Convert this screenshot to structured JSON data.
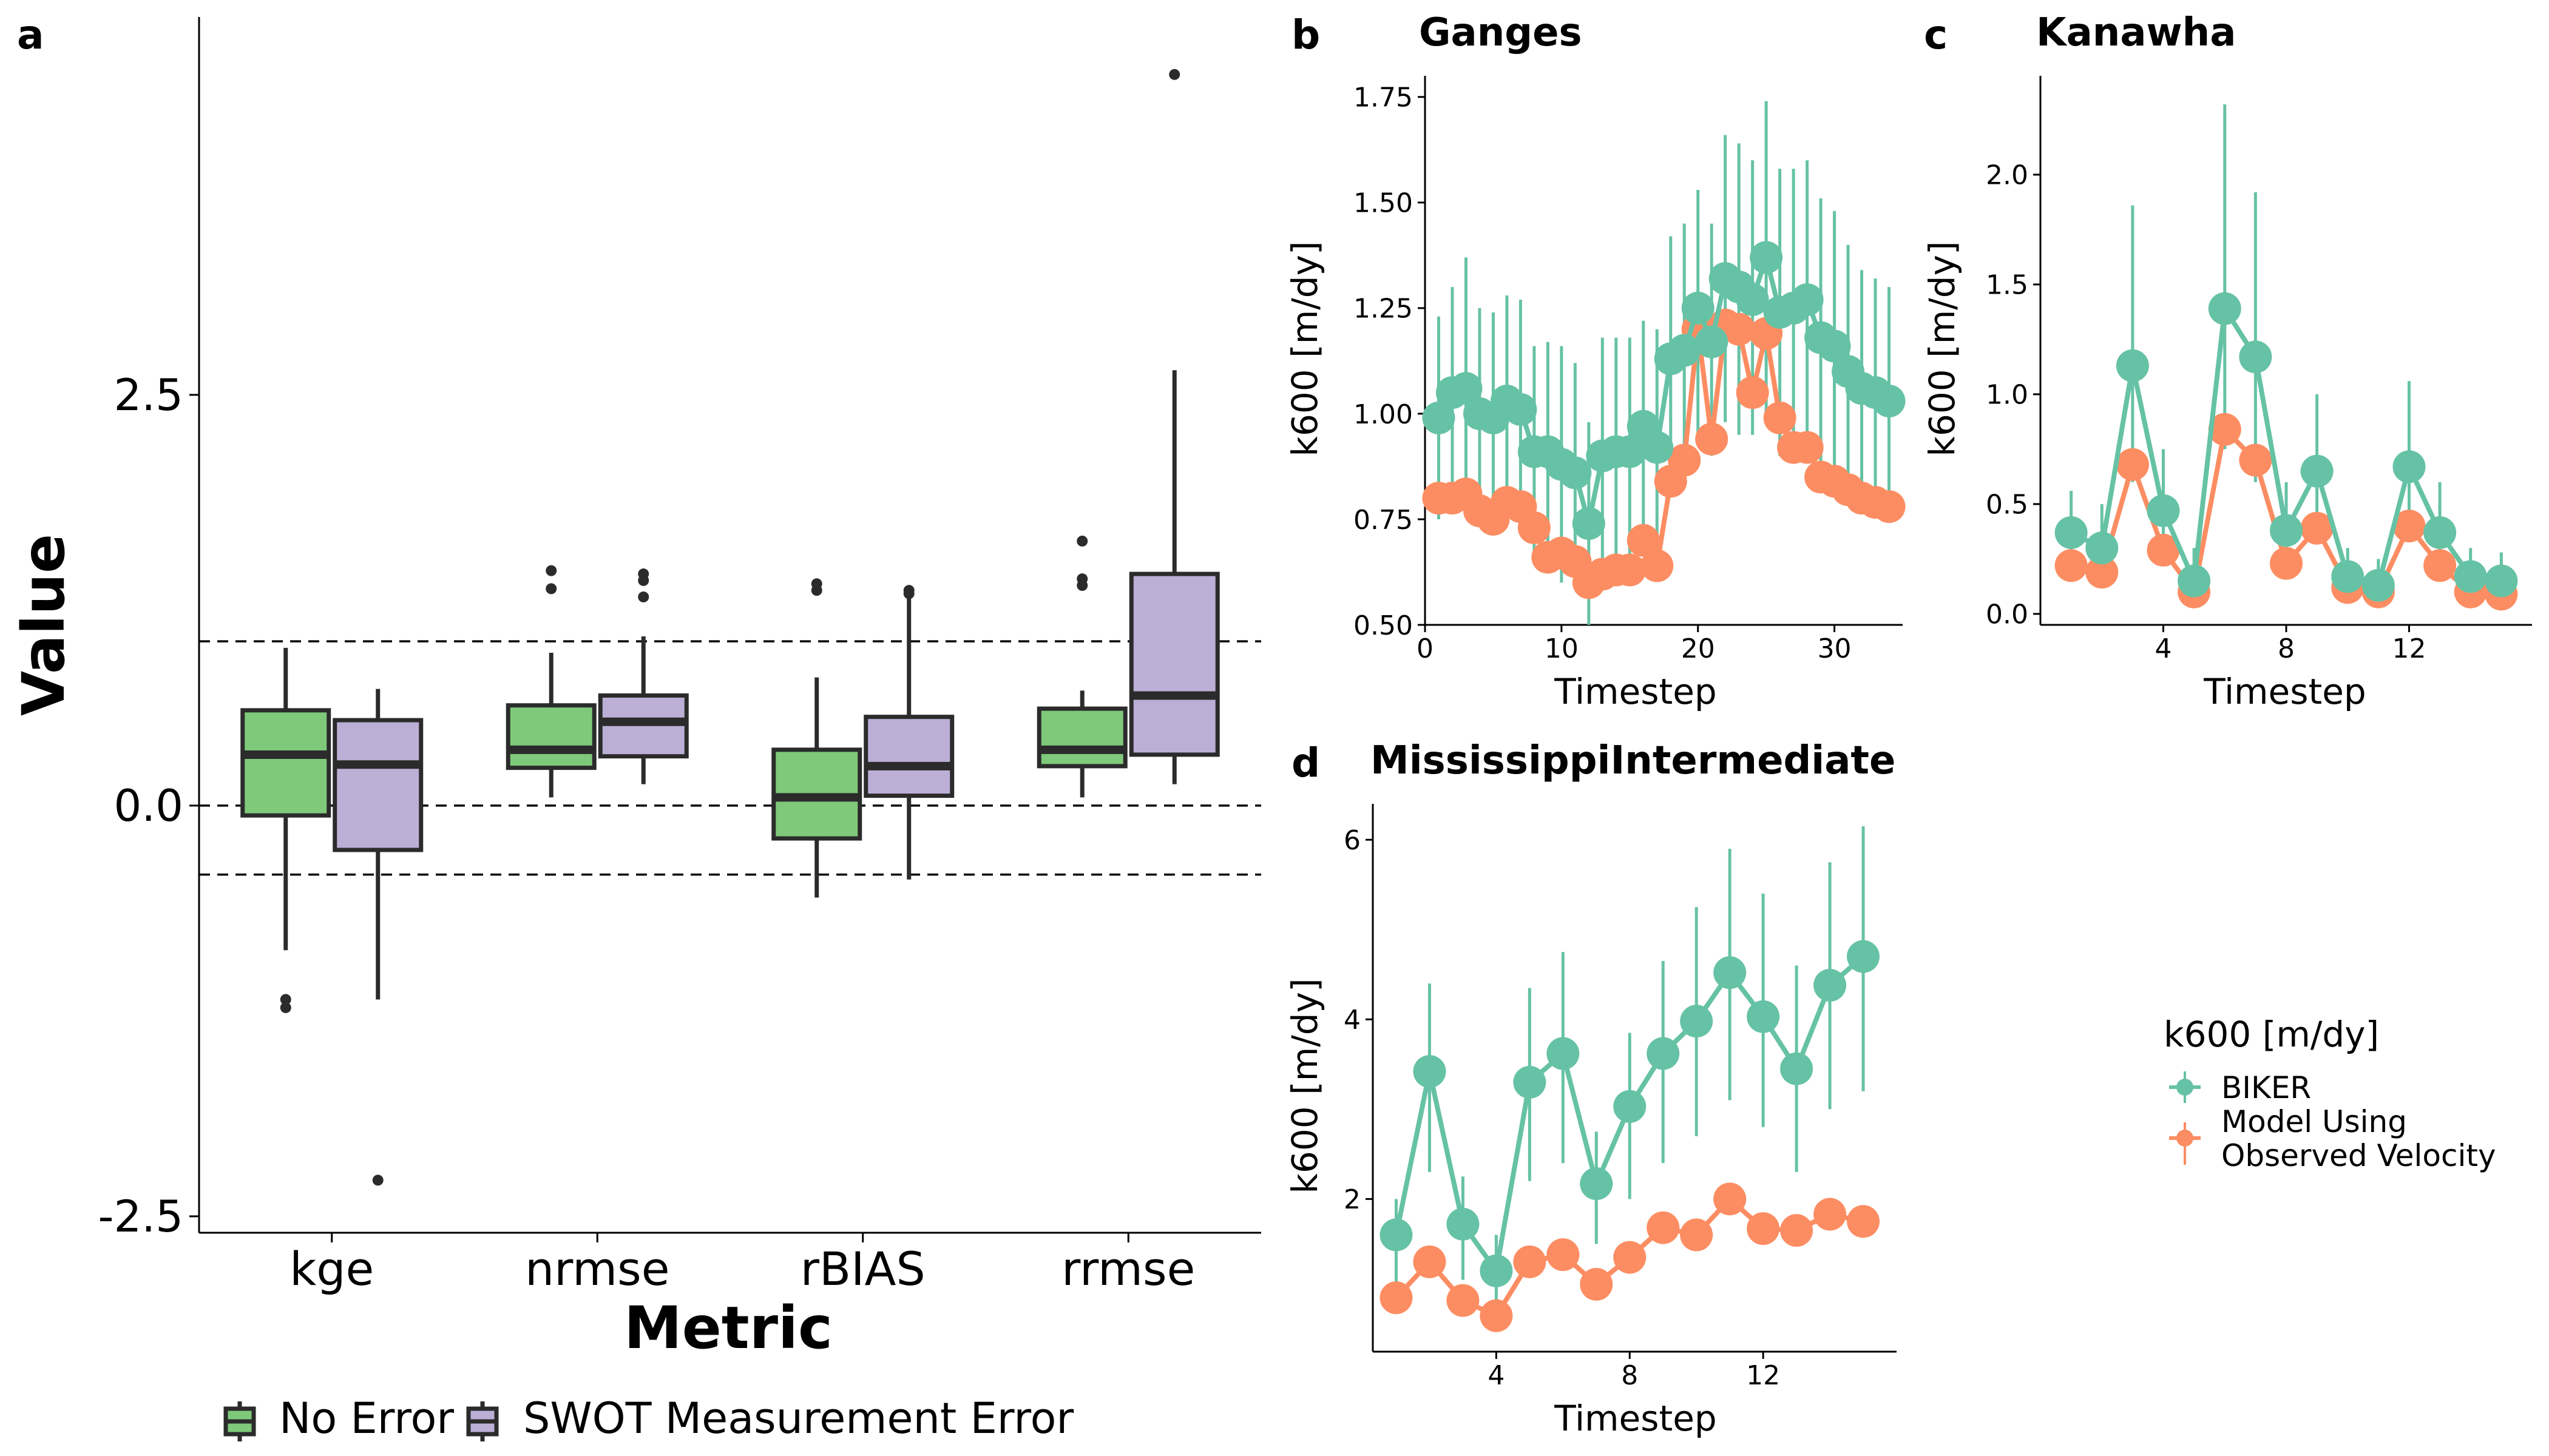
{
  "colors": {
    "no_error": "#7ec97a",
    "swot_error": "#bcafd6",
    "biker": "#66c2a5",
    "model": "#fc8d62"
  },
  "chart_data": [
    {
      "panel": "a",
      "type": "box",
      "title": "",
      "xlabel": "Metric",
      "ylabel": "Value",
      "ylim": [
        -2.6,
        4.8
      ],
      "yticks": [
        -2.5,
        0.0,
        2.5
      ],
      "ytick_labels": [
        "-2.5",
        "0.0",
        "2.5"
      ],
      "categories": [
        "kge",
        "nrmse",
        "rBIAS",
        "rrmse"
      ],
      "reference_lines": [
        1.0,
        0.0,
        -0.42
      ],
      "legend": {
        "placement": "bottom",
        "entries": [
          "No Error",
          "SWOT Measurement Error"
        ]
      },
      "series": [
        {
          "name": "No Error",
          "boxes": [
            {
              "category": "kge",
              "lo": -0.88,
              "q1": -0.06,
              "median": 0.31,
              "q3": 0.58,
              "hi": 0.96,
              "outliers": [
                -1.18,
                -1.23
              ]
            },
            {
              "category": "nrmse",
              "lo": 0.05,
              "q1": 0.23,
              "median": 0.34,
              "q3": 0.61,
              "hi": 0.93,
              "outliers": [
                1.43,
                1.32
              ]
            },
            {
              "category": "rBIAS",
              "lo": -0.56,
              "q1": -0.2,
              "median": 0.05,
              "q3": 0.34,
              "hi": 0.78,
              "outliers": [
                1.35,
                1.31
              ]
            },
            {
              "category": "rrmse",
              "lo": 0.05,
              "q1": 0.24,
              "median": 0.34,
              "q3": 0.59,
              "hi": 0.7,
              "outliers": [
                1.61,
                1.38,
                1.34
              ]
            }
          ]
        },
        {
          "name": "SWOT Measurement Error",
          "boxes": [
            {
              "category": "kge",
              "lo": -1.18,
              "q1": -0.27,
              "median": 0.25,
              "q3": 0.52,
              "hi": 0.71,
              "outliers": [
                -2.28
              ]
            },
            {
              "category": "nrmse",
              "lo": 0.13,
              "q1": 0.3,
              "median": 0.51,
              "q3": 0.67,
              "hi": 1.03,
              "outliers": [
                1.41,
                1.37,
                1.27
              ]
            },
            {
              "category": "rBIAS",
              "lo": -0.45,
              "q1": 0.06,
              "median": 0.24,
              "q3": 0.54,
              "hi": 1.29,
              "outliers": [
                1.31,
                1.29
              ]
            },
            {
              "category": "rrmse",
              "lo": 0.13,
              "q1": 0.31,
              "median": 0.67,
              "q3": 1.41,
              "hi": 2.65,
              "outliers": [
                4.45
              ]
            }
          ]
        }
      ]
    },
    {
      "panel": "b",
      "type": "line",
      "title": "Ganges",
      "xlabel": "Timestep",
      "ylabel": "k600 [m/dy]",
      "xlim": [
        0,
        35
      ],
      "ylim": [
        0.5,
        1.8
      ],
      "xticks": [
        0,
        10,
        20,
        30
      ],
      "yticks": [
        0.5,
        0.75,
        1.0,
        1.25,
        1.5,
        1.75
      ],
      "ytick_labels": [
        "0.50",
        "0.75",
        "1.00",
        "1.25",
        "1.50",
        "1.75"
      ],
      "x": [
        1,
        2,
        3,
        4,
        5,
        6,
        7,
        8,
        9,
        10,
        11,
        12,
        13,
        14,
        15,
        16,
        17,
        18,
        19,
        20,
        21,
        22,
        23,
        24,
        25,
        26,
        27,
        28,
        29,
        30,
        31,
        32,
        33,
        34
      ],
      "series": [
        {
          "name": "BIKER",
          "values": [
            0.99,
            1.05,
            1.06,
            1.0,
            0.99,
            1.03,
            1.01,
            0.91,
            0.91,
            0.88,
            0.86,
            0.74,
            0.9,
            0.91,
            0.91,
            0.97,
            0.92,
            1.13,
            1.15,
            1.25,
            1.17,
            1.32,
            1.3,
            1.27,
            1.37,
            1.24,
            1.25,
            1.27,
            1.18,
            1.16,
            1.1,
            1.06,
            1.05,
            1.03
          ],
          "err_low": [
            0.75,
            0.8,
            0.8,
            0.75,
            0.75,
            0.8,
            0.75,
            0.65,
            0.65,
            0.6,
            0.6,
            0.5,
            0.62,
            0.65,
            0.65,
            0.72,
            0.65,
            0.85,
            0.85,
            0.95,
            0.9,
            0.98,
            0.95,
            0.95,
            1.0,
            0.9,
            0.92,
            0.95,
            0.85,
            0.85,
            0.8,
            0.78,
            0.78,
            0.75
          ],
          "err_high": [
            1.23,
            1.3,
            1.37,
            1.25,
            1.24,
            1.28,
            1.27,
            1.16,
            1.17,
            1.16,
            1.12,
            0.98,
            1.18,
            1.18,
            1.18,
            1.22,
            1.2,
            1.42,
            1.45,
            1.53,
            1.45,
            1.66,
            1.64,
            1.6,
            1.74,
            1.58,
            1.58,
            1.6,
            1.51,
            1.48,
            1.4,
            1.34,
            1.32,
            1.3
          ]
        },
        {
          "name": "Model Using Observed Velocity",
          "values": [
            0.8,
            0.8,
            0.81,
            0.77,
            0.75,
            0.79,
            0.78,
            0.73,
            0.66,
            0.67,
            0.65,
            0.6,
            0.62,
            0.63,
            0.63,
            0.7,
            0.64,
            0.84,
            0.89,
            1.2,
            0.94,
            1.21,
            1.2,
            1.05,
            1.19,
            0.99,
            0.92,
            0.92,
            0.85,
            0.84,
            0.82,
            0.8,
            0.79,
            0.78
          ]
        }
      ]
    },
    {
      "panel": "c",
      "type": "line",
      "title": "Kanawha",
      "xlabel": "Timestep",
      "ylabel": "k600 [m/dy]",
      "xlim": [
        0,
        16
      ],
      "ylim": [
        -0.05,
        2.45
      ],
      "xticks": [
        4,
        8,
        12
      ],
      "yticks": [
        0.0,
        0.5,
        1.0,
        1.5,
        2.0
      ],
      "ytick_labels": [
        "0.0",
        "0.5",
        "1.0",
        "1.5",
        "2.0"
      ],
      "x": [
        1,
        2,
        3,
        4,
        5,
        6,
        7,
        8,
        9,
        10,
        11,
        12,
        13,
        14,
        15
      ],
      "series": [
        {
          "name": "BIKER",
          "values": [
            0.37,
            0.3,
            1.13,
            0.47,
            0.15,
            1.39,
            1.17,
            0.38,
            0.65,
            0.17,
            0.13,
            0.67,
            0.37,
            0.17,
            0.15
          ],
          "err_low": [
            0.2,
            0.15,
            0.6,
            0.25,
            0.05,
            0.75,
            0.6,
            0.2,
            0.35,
            0.05,
            0.03,
            0.35,
            0.2,
            0.05,
            0.05
          ],
          "err_high": [
            0.56,
            0.5,
            1.86,
            0.75,
            0.3,
            2.32,
            1.92,
            0.6,
            1.0,
            0.3,
            0.25,
            1.06,
            0.6,
            0.3,
            0.28
          ]
        },
        {
          "name": "Model Using Observed Velocity",
          "values": [
            0.22,
            0.19,
            0.68,
            0.29,
            0.1,
            0.84,
            0.7,
            0.23,
            0.39,
            0.12,
            0.1,
            0.4,
            0.22,
            0.1,
            0.09
          ]
        }
      ]
    },
    {
      "panel": "d",
      "type": "line",
      "title": "MississippiIntermediate",
      "xlabel": "Timestep",
      "ylabel": "k600 [m/dy]",
      "xlim": [
        0.3,
        16
      ],
      "ylim": [
        0.3,
        6.4
      ],
      "xticks": [
        4,
        8,
        12
      ],
      "yticks": [
        2,
        4,
        6
      ],
      "ytick_labels": [
        "2",
        "4",
        "6"
      ],
      "x": [
        1,
        2,
        3,
        4,
        5,
        6,
        7,
        8,
        9,
        10,
        11,
        12,
        13,
        14,
        15
      ],
      "series": [
        {
          "name": "BIKER",
          "values": [
            1.6,
            3.42,
            1.72,
            1.2,
            3.3,
            3.62,
            2.17,
            3.03,
            3.62,
            3.98,
            4.52,
            4.03,
            3.45,
            4.38,
            4.7
          ],
          "err_low": [
            1.0,
            2.3,
            1.1,
            0.8,
            2.2,
            2.4,
            1.5,
            2.0,
            2.4,
            2.7,
            3.1,
            2.8,
            2.3,
            3.0,
            3.2
          ],
          "err_high": [
            2.0,
            4.4,
            2.25,
            1.6,
            4.35,
            4.75,
            2.75,
            3.85,
            4.65,
            5.25,
            5.9,
            5.4,
            4.6,
            5.75,
            6.15
          ]
        },
        {
          "name": "Model Using Observed Velocity",
          "values": [
            0.9,
            1.3,
            0.87,
            0.7,
            1.3,
            1.38,
            1.05,
            1.35,
            1.68,
            1.6,
            2.0,
            1.67,
            1.65,
            1.83,
            1.75
          ]
        }
      ]
    }
  ],
  "side_legend": {
    "title": "k600 [m/dy]",
    "entries": [
      {
        "label_lines": [
          "BIKER"
        ]
      },
      {
        "label_lines": [
          "Model Using",
          "Observed Velocity"
        ]
      }
    ]
  }
}
